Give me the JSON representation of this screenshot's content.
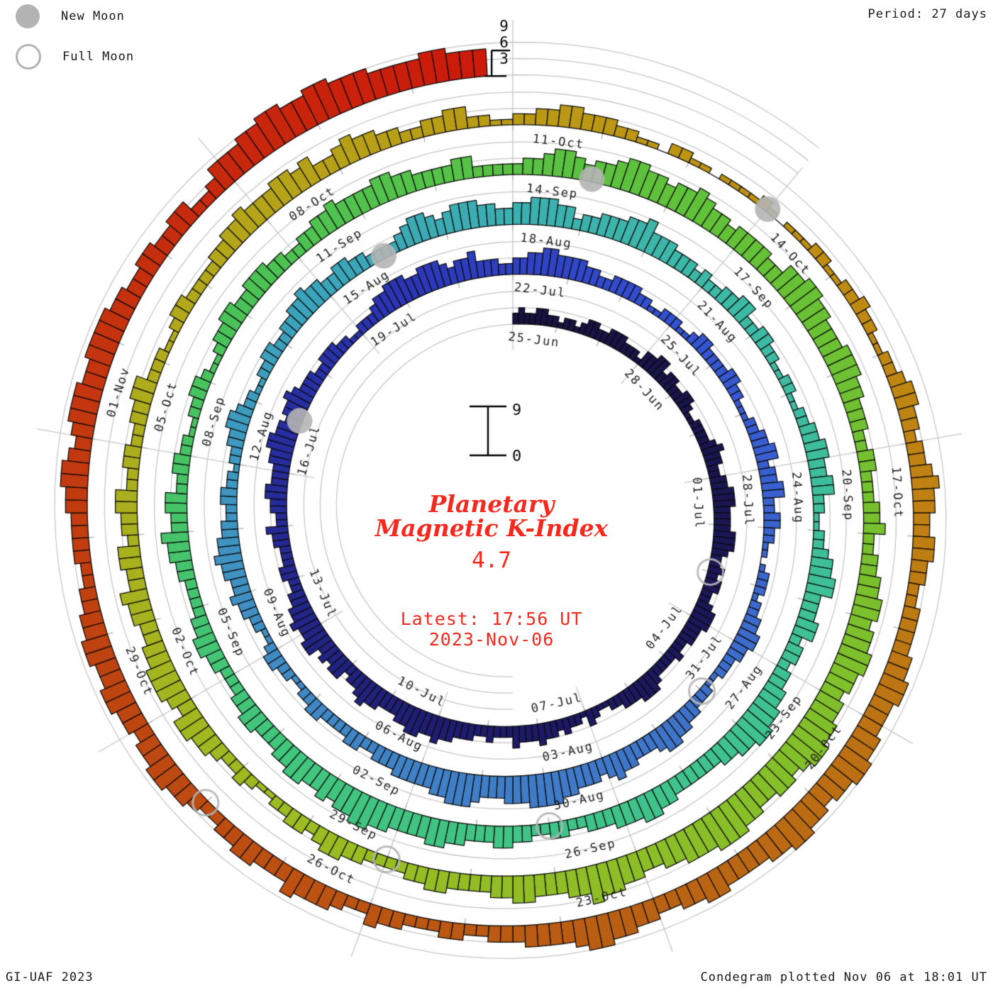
{
  "header": {
    "period_label": "Period: 27 days"
  },
  "legend": {
    "new_moon": "New Moon",
    "full_moon": "Full Moon"
  },
  "footer": {
    "left": "GI-UAF 2023",
    "right": "Condegram plotted Nov 06 at 18:01 UT"
  },
  "center": {
    "title_line1": "Planetary",
    "title_line2": "Magnetic K-Index",
    "current_value": "4.7",
    "latest_label": "Latest: 17:56 UT",
    "latest_date": "2023-Nov-06"
  },
  "chart_data": {
    "type": "spiral-bar-condegram",
    "title": "Planetary Magnetic K-Index",
    "start_date": "2023-06-25",
    "end_date": "2023-11-06",
    "period_days": 27,
    "values_per_day": 8,
    "k_range": [
      0,
      9
    ],
    "k_axis_ticks": [
      "3",
      "6",
      "9"
    ],
    "inner_scale_top": "9",
    "inner_scale_bottom": "0",
    "latest_value": 4.7,
    "spokes": [
      {
        "angle": 0,
        "dates": [
          "25-Jun",
          "22-Jul",
          "18-Aug",
          "14-Sep",
          "11-Oct"
        ]
      },
      {
        "angle": 40,
        "dates": [
          "28-Jun",
          "25-Jul",
          "21-Aug",
          "17-Sep",
          "14-Oct"
        ]
      },
      {
        "angle": 80,
        "dates": [
          "01-Jul",
          "28-Jul",
          "24-Aug",
          "20-Sep",
          "17-Oct"
        ]
      },
      {
        "angle": 120,
        "dates": [
          "04-Jul",
          "31-Jul",
          "27-Aug",
          "23-Sep",
          "20-Oct"
        ]
      },
      {
        "angle": 160,
        "dates": [
          "07-Jul",
          "03-Aug",
          "30-Aug",
          "26-Sep",
          "23-Oct"
        ]
      },
      {
        "angle": 200,
        "dates": [
          "10-Jul",
          "06-Aug",
          "02-Sep",
          "29-Sep",
          "26-Oct"
        ]
      },
      {
        "angle": 240,
        "dates": [
          "13-Jul",
          "09-Aug",
          "05-Sep",
          "02-Oct",
          "29-Oct"
        ]
      },
      {
        "angle": 280,
        "dates": [
          "16-Jul",
          "12-Aug",
          "08-Sep",
          "05-Oct",
          "01-Nov"
        ]
      },
      {
        "angle": 320,
        "dates": [
          "19-Jul",
          "15-Aug",
          "11-Sep",
          "08-Oct"
        ]
      }
    ],
    "moons": [
      {
        "type": "full",
        "date": "2023-07-03",
        "day": 8
      },
      {
        "type": "new",
        "date": "2023-07-17",
        "day": 22
      },
      {
        "type": "full",
        "date": "2023-08-01",
        "day": 37
      },
      {
        "type": "new",
        "date": "2023-08-16",
        "day": 52
      },
      {
        "type": "full",
        "date": "2023-08-31",
        "day": 67
      },
      {
        "type": "new",
        "date": "2023-09-15",
        "day": 82
      },
      {
        "type": "full",
        "date": "2023-09-29",
        "day": 96
      },
      {
        "type": "new",
        "date": "2023-10-14",
        "day": 111
      },
      {
        "type": "full",
        "date": "2023-10-28",
        "day": 125
      }
    ],
    "color_stops": [
      [
        0.0,
        "#17123f"
      ],
      [
        0.1,
        "#1d1a68"
      ],
      [
        0.185,
        "#2b35b4"
      ],
      [
        0.22,
        "#3350d2"
      ],
      [
        0.28,
        "#3f74c9"
      ],
      [
        0.33,
        "#4189c4"
      ],
      [
        0.375,
        "#3ba3bb"
      ],
      [
        0.42,
        "#3db8a8"
      ],
      [
        0.47,
        "#3fc291"
      ],
      [
        0.53,
        "#42c57a"
      ],
      [
        0.575,
        "#4cc254"
      ],
      [
        0.62,
        "#62c138"
      ],
      [
        0.66,
        "#7cc02c"
      ],
      [
        0.72,
        "#9cbc22"
      ],
      [
        0.77,
        "#b2a81b"
      ],
      [
        0.815,
        "#bd9413"
      ],
      [
        0.85,
        "#c08112"
      ],
      [
        0.89,
        "#b96114"
      ],
      [
        0.93,
        "#bd4a11"
      ],
      [
        0.97,
        "#c52f0e"
      ],
      [
        1.0,
        "#cc190b"
      ]
    ],
    "kp_days": [
      "23223322",
      "12212332",
      "23332221",
      "33442332",
      "23321122",
      "22343322",
      "33444333",
      "34443223",
      "23322344",
      "43332232",
      "22234443",
      "33221123",
      "12232334",
      "33342223",
      "22333445",
      "44554433",
      "34454332",
      "44343554",
      "45443322",
      "33222334",
      "22334433",
      "34455443",
      "44543332",
      "23332211",
      "22234455",
      "54455543",
      "44533322",
      "33445544",
      "44332233",
      "33221122",
      "21123322",
      "22332211",
      "12233442",
      "33442233",
      "22110122",
      "21223344",
      "33222112",
      "22334455",
      "43334454",
      "34445566",
      "66555444",
      "56665544",
      "44433322",
      "33222233",
      "22112233",
      "21122334",
      "33445443",
      "32233221",
      "22334432",
      "21122332",
      "23344544",
      "33443322",
      "22345543",
      "45554433",
      "44555442",
      "33444556",
      "44433323",
      "22334422",
      "33221122",
      "11223344",
      "33442211",
      "22344553",
      "33442332",
      "33445566",
      "55443333",
      "33445544",
      "43332233",
      "22334433",
      "34455444",
      "45566554",
      "54455443",
      "33443322",
      "23344332",
      "22233445",
      "33442233",
      "22112233",
      "21123344",
      "33444332",
      "23344544",
      "44554433",
      "33442222",
      "23345543",
      "44566554",
      "55654434",
      "44433556",
      "65544455",
      "54433322",
      "33222334",
      "22334455",
      "45566554",
      "55667765",
      "66556677",
      "76665544",
      "55667554",
      "44554433",
      "33443322",
      "22334432",
      "33221123",
      "22344553",
      "45554433",
      "44533442",
      "33442233",
      "22334422",
      "21123322",
      "22334454",
      "44554533",
      "45443322",
      "33442211",
      "22334433",
      "32211022",
      "11011112",
      "10111221",
      "12232211",
      "22344332",
      "33454433",
      "44332233",
      "33445544",
      "45566554",
      "55665544",
      "44554433",
      "44556654",
      "44433322",
      "33222334",
      "22344453",
      "33443322",
      "34455443",
      "44554455",
      "44332233",
      "33445543",
      "45554455",
      "55443344",
      "33442235",
      "55667766",
      "77666555",
      "566555"
    ]
  }
}
